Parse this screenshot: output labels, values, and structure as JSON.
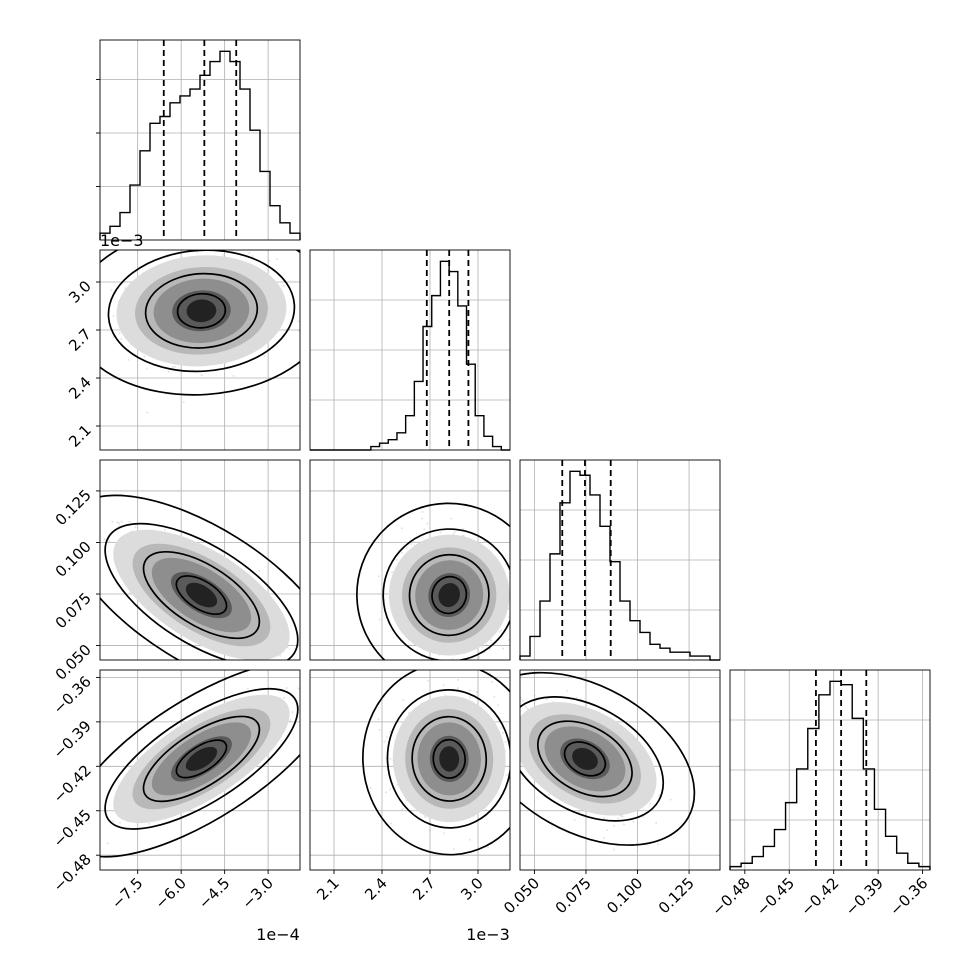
{
  "chart_data": {
    "type": "corner",
    "n_params": 4,
    "quantiles": [
      0.16,
      0.5,
      0.84
    ],
    "params": [
      {
        "mean": -0.00053,
        "sd": 0.000115,
        "range": [
          -0.00088,
          -0.00019
        ],
        "ticks": [
          "−7.5",
          "−6.0",
          "−4.5",
          "−3.0"
        ],
        "tick_values": [
          -0.00075,
          -0.0006,
          -0.00045,
          -0.0003
        ],
        "offset": "1e−4",
        "marginal": [
          2,
          4,
          8,
          16,
          26,
          34,
          36,
          40,
          42,
          44,
          48,
          52,
          55,
          52,
          44,
          32,
          20,
          10,
          5,
          2
        ],
        "quantile_values": [
          -0.00066,
          -0.00052,
          -0.00041
        ]
      },
      {
        "mean": 0.00282,
        "sd": 0.00014,
        "range": [
          0.00195,
          0.0032
        ],
        "ticks": [
          "2.1",
          "2.4",
          "2.7",
          "3.0"
        ],
        "tick_values": [
          0.0021,
          0.0024,
          0.0027,
          0.003
        ],
        "offset": "1e−3",
        "marginal": [
          0,
          0,
          0,
          0,
          0,
          0,
          0,
          1,
          2,
          3,
          5,
          10,
          20,
          36,
          45,
          55,
          52,
          42,
          25,
          10,
          4,
          1,
          0
        ],
        "quantile_values": [
          0.00268,
          0.00282,
          0.00294
        ]
      },
      {
        "mean": 0.0745,
        "sd": 0.013,
        "range": [
          0.043,
          0.14
        ],
        "ticks": [
          "0.050",
          "0.075",
          "0.100",
          "0.125"
        ],
        "tick_values": [
          0.05,
          0.075,
          0.1,
          0.125
        ],
        "offset": "",
        "marginal": [
          1,
          6,
          15,
          27,
          40,
          48,
          47,
          42,
          34,
          25,
          15,
          10,
          7,
          4,
          3,
          2,
          2,
          1,
          1,
          0
        ],
        "quantile_values": [
          0.0635,
          0.0745,
          0.087
        ]
      },
      {
        "mean": -0.415,
        "sd": 0.017,
        "range": [
          -0.49,
          -0.355
        ],
        "ticks": [
          "−0.48",
          "−0.45",
          "−0.42",
          "−0.39",
          "−0.36"
        ],
        "tick_values": [
          -0.48,
          -0.45,
          -0.42,
          -0.39,
          -0.36
        ],
        "offset": "",
        "marginal": [
          1,
          2,
          4,
          7,
          12,
          20,
          30,
          42,
          52,
          56,
          55,
          45,
          30,
          18,
          10,
          5,
          2,
          1
        ],
        "quantile_values": [
          -0.432,
          -0.415,
          -0.398
        ]
      }
    ],
    "correlations": [
      [
        0,
        1,
        0.1
      ],
      [
        0,
        2,
        -0.78
      ],
      [
        1,
        2,
        -0.3
      ],
      [
        0,
        3,
        0.85
      ],
      [
        1,
        3,
        0.05
      ],
      [
        2,
        3,
        -0.6
      ]
    ],
    "colors": {
      "line": "#000000",
      "grid": "#b0b0b0",
      "points": "#888888"
    }
  }
}
